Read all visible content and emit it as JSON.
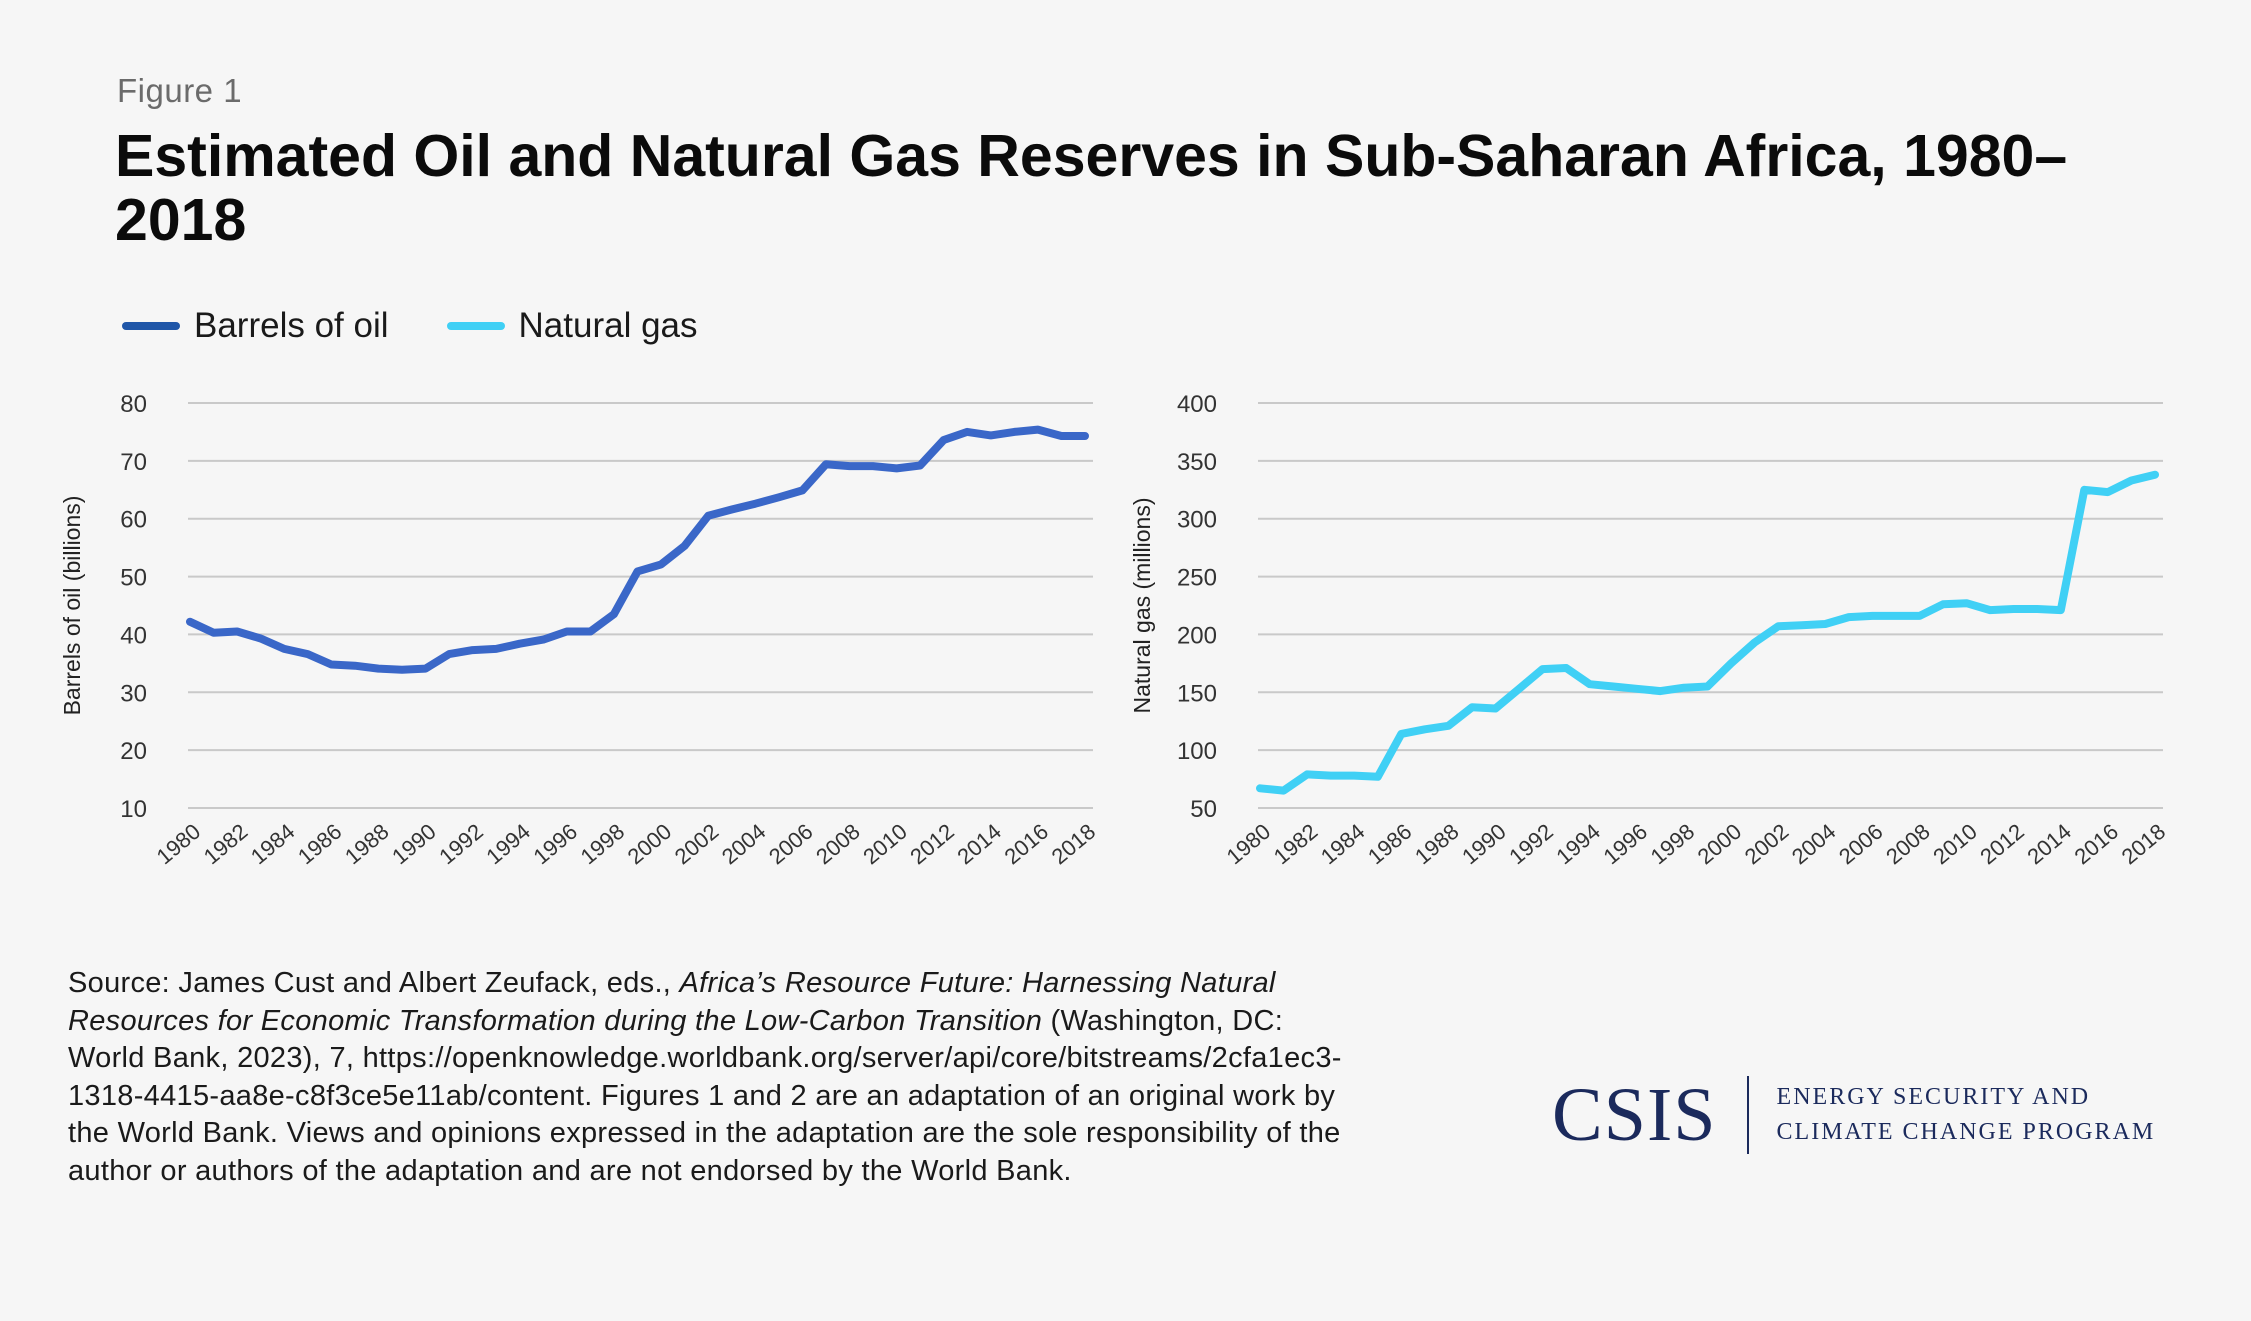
{
  "figure_label": "Figure 1",
  "title": "Estimated Oil and Natural Gas Reserves in Sub-Saharan Africa, 1980–2018",
  "legend": [
    {
      "label": "Barrels of oil",
      "color": "#2f5fbf"
    },
    {
      "label": "Natural gas",
      "color": "#40d0f5"
    }
  ],
  "chart_data": [
    {
      "type": "line",
      "ylabel": "Barrels of oil (billions)",
      "ylim": [
        10,
        80
      ],
      "yticks": [
        10,
        20,
        30,
        40,
        50,
        60,
        70,
        80
      ],
      "xtick_labels": [
        "1980",
        "1982",
        "1984",
        "1986",
        "1988",
        "1990",
        "1992",
        "1994",
        "1996",
        "1998",
        "2000",
        "2002",
        "2004",
        "2006",
        "2008",
        "2010",
        "2012",
        "2014",
        "2016",
        "2018"
      ],
      "color": "#3a67c8",
      "x": [
        1980,
        1981,
        1982,
        1983,
        1984,
        1985,
        1986,
        1987,
        1988,
        1989,
        1990,
        1991,
        1992,
        1993,
        1994,
        1995,
        1996,
        1997,
        1998,
        1999,
        2000,
        2001,
        2002,
        2003,
        2004,
        2005,
        2006,
        2007,
        2008,
        2009,
        2010,
        2011,
        2012,
        2013,
        2014,
        2015,
        2016,
        2017,
        2018
      ],
      "series": [
        {
          "name": "Barrels of oil",
          "values": [
            42.2,
            40.3,
            40.5,
            39.3,
            37.5,
            36.6,
            34.8,
            34.6,
            34.1,
            33.9,
            34.1,
            36.6,
            37.3,
            37.5,
            38.4,
            39.1,
            40.5,
            40.5,
            43.5,
            50.9,
            52.1,
            55.3,
            60.5,
            61.6,
            62.6,
            63.7,
            64.9,
            69.4,
            69.1,
            69.1,
            68.7,
            69.2,
            73.6,
            75.0,
            74.4,
            75.0,
            75.4,
            74.3,
            74.3
          ]
        }
      ]
    },
    {
      "type": "line",
      "ylabel": "Natural gas (millions)",
      "ylim": [
        50,
        400
      ],
      "yticks": [
        50,
        100,
        150,
        200,
        250,
        300,
        350,
        400
      ],
      "xtick_labels": [
        "1980",
        "1982",
        "1984",
        "1986",
        "1988",
        "1990",
        "1992",
        "1994",
        "1996",
        "1998",
        "2000",
        "2002",
        "2004",
        "2006",
        "2008",
        "2010",
        "2012",
        "2014",
        "2016",
        "2018"
      ],
      "color": "#40d0f5",
      "x": [
        1980,
        1981,
        1982,
        1983,
        1984,
        1985,
        1986,
        1987,
        1988,
        1989,
        1990,
        1991,
        1992,
        1993,
        1994,
        1995,
        1996,
        1997,
        1998,
        1999,
        2000,
        2001,
        2002,
        2003,
        2004,
        2005,
        2006,
        2007,
        2008,
        2009,
        2010,
        2011,
        2012,
        2013,
        2014,
        2015,
        2016,
        2017,
        2018
      ],
      "series": [
        {
          "name": "Natural gas",
          "values": [
            67,
            65,
            79,
            78,
            78,
            77,
            114,
            118,
            121,
            137,
            136,
            153,
            170,
            171,
            157,
            155,
            153,
            151,
            154,
            155,
            175,
            193,
            207,
            208,
            209,
            215,
            216,
            216,
            216,
            226,
            227,
            221,
            222,
            222,
            221,
            325,
            323,
            333,
            338
          ]
        }
      ]
    }
  ],
  "source": {
    "prefix": "Source: James Cust and Albert Zeufack, eds., ",
    "title_italic": "Africa’s Resource Future: Harnessing Natural Resources for Economic Transformation during the Low-Carbon Transition",
    "rest": " (Washington, DC: World Bank, 2023), 7, https://openknowledge.worldbank.org/server/api/core/bitstreams/2cfa1ec3-1318-4415-aa8e-c8f3ce5e11ab/content. Figures 1 and 2 are an adaptation of an original work by the World Bank. Views and opinions expressed in the adaptation are the sole responsibility of the author or authors of the adaptation and are not endorsed by the World Bank."
  },
  "branding": {
    "logo": "CSIS",
    "program_line1": "ENERGY SECURITY AND",
    "program_line2": "CLIMATE CHANGE PROGRAM"
  }
}
